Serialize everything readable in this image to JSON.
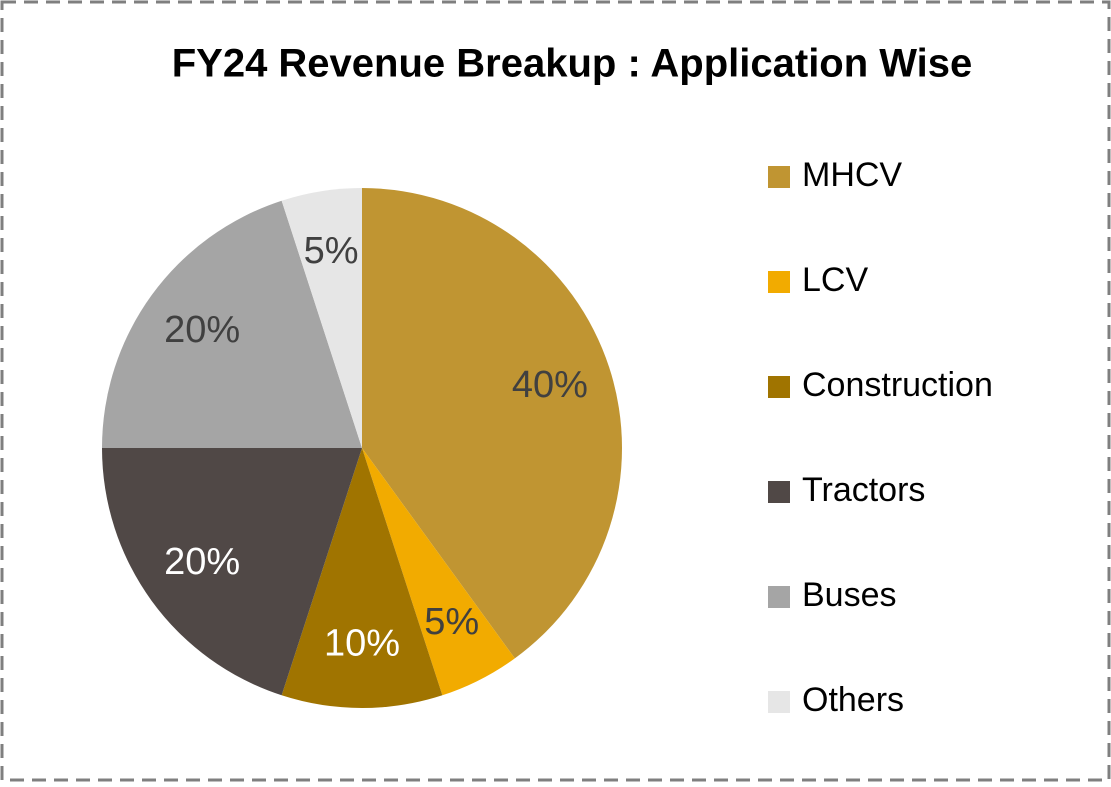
{
  "chart_data": {
    "type": "pie",
    "title": "FY24 Revenue Breakup : Application Wise",
    "categories": [
      "MHCV",
      "LCV",
      "Construction",
      "Tractors",
      "Buses",
      "Others"
    ],
    "values": [
      40,
      5,
      10,
      20,
      20,
      5
    ],
    "value_labels": [
      "40%",
      "5%",
      "10%",
      "20%",
      "20%",
      "5%"
    ],
    "colors": [
      "#C09532",
      "#F2AB00",
      "#A07400",
      "#504846",
      "#A5A5A5",
      "#E6E6E6"
    ],
    "label_colors": [
      "#404040",
      "#404040",
      "#ffffff",
      "#ffffff",
      "#404040",
      "#404040"
    ],
    "legend": "right"
  }
}
